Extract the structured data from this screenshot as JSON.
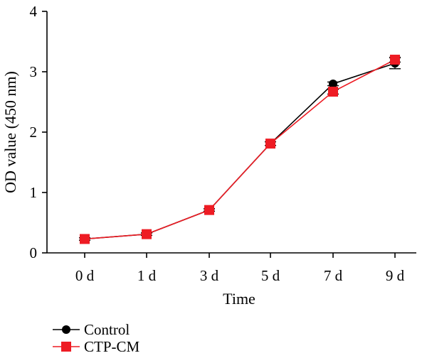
{
  "chart_data": {
    "type": "line",
    "title": "",
    "xlabel": "Time",
    "ylabel": "OD value (450 nm)",
    "categories": [
      "0 d",
      "1 d",
      "3 d",
      "5 d",
      "7 d",
      "9 d"
    ],
    "ylim": [
      0,
      4
    ],
    "yticks": [
      "0",
      "1",
      "2",
      "3",
      "4"
    ],
    "grid": false,
    "legend_position": "bottom-left",
    "series": [
      {
        "name": "Control",
        "marker": "circle",
        "color": "#000000",
        "values": [
          0.23,
          0.31,
          0.71,
          1.81,
          2.8,
          3.14
        ],
        "error": [
          0.02,
          0.02,
          0.02,
          0.03,
          0.03,
          0.09
        ]
      },
      {
        "name": "CTP-CM",
        "marker": "square",
        "color": "#ee1c24",
        "values": [
          0.23,
          0.31,
          0.71,
          1.81,
          2.67,
          3.2
        ],
        "error": [
          0.02,
          0.02,
          0.02,
          0.03,
          0.04,
          0.04
        ]
      }
    ]
  }
}
